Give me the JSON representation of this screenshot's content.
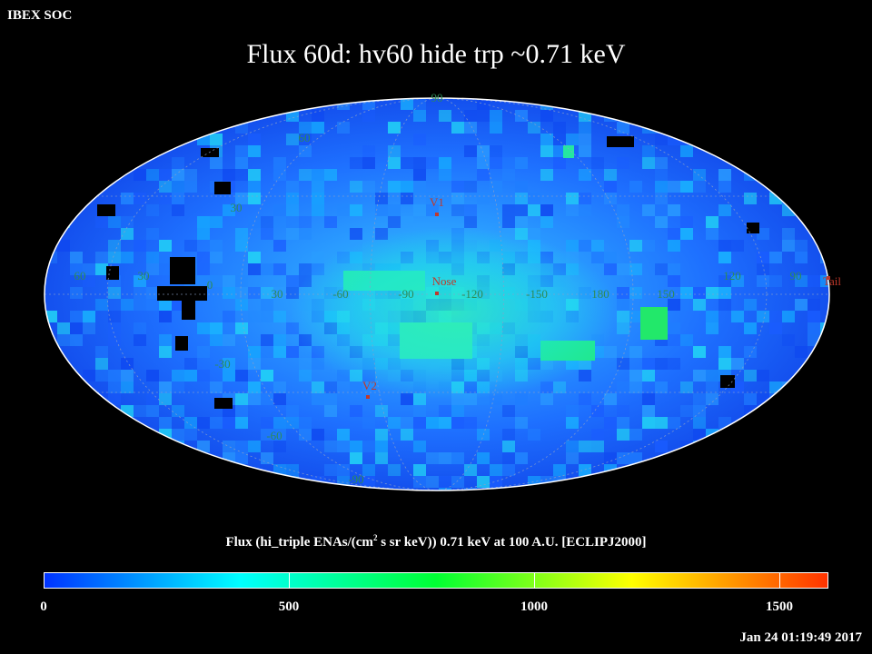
{
  "header": {
    "org": "IBEX SOC",
    "title": "Flux   60d: hv60 hide trp ~0.71 keV"
  },
  "map": {
    "projection": "Aitoff/Hammer (ecliptic, full sky)",
    "graticule_labels": {
      "lat_top": "90",
      "lat": [
        "60",
        "30",
        "0",
        "-30",
        "-60"
      ],
      "lon_top": "60",
      "lon_equator": [
        "60",
        "30",
        "0",
        "30",
        "-60",
        "-90",
        "-120",
        "-150",
        "180",
        "150",
        "120",
        "90"
      ],
      "lon_bottom": "-90"
    },
    "markers": [
      {
        "label": "V1"
      },
      {
        "label": "Nose"
      },
      {
        "label": "V2"
      },
      {
        "label": "Tail"
      }
    ]
  },
  "colorbar": {
    "title": "Flux (hi_triple ENAs/(cm",
    "title_sup": "2",
    "title_rest": " s sr keV))  0.71 keV at 100 A.U. [ECLIPJ2000]",
    "ticks": [
      "0",
      "500",
      "1000",
      "1500"
    ],
    "range": [
      0,
      1600
    ],
    "colors": [
      "#0033ff",
      "#00ffff",
      "#00ff33",
      "#ffff00",
      "#ff3300"
    ]
  },
  "timestamp": "Jan 24 01:19:49 2017"
}
